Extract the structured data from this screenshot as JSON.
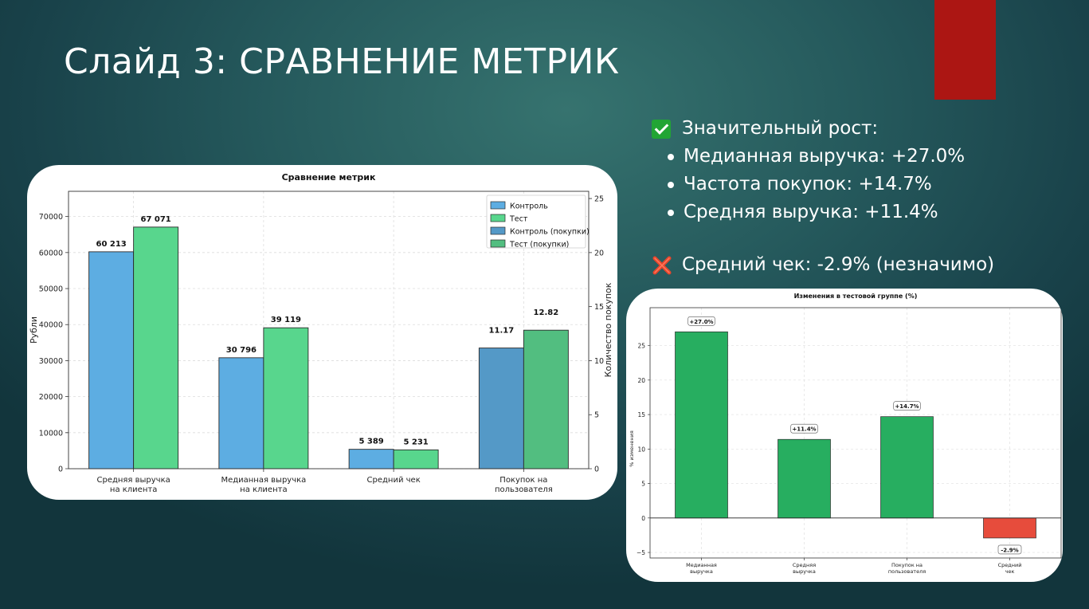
{
  "slide": {
    "title": "Слайд 3: СРАВНЕНИЕ МЕТРИК",
    "accent_color": "#ac1613"
  },
  "bullets": {
    "significant_icon": "check-mark-icon",
    "significant_header": "Значительный рост:",
    "items": [
      "Медианная выручка: +27.0%",
      "Частота покупок: +14.7%",
      "Средняя выручка: +11.4%"
    ],
    "insignificant_icon": "cross-mark-icon",
    "insignificant": "Средний чек: -2.9% (незначимо)"
  },
  "chart_data": [
    {
      "type": "bar",
      "title": "Сравнение метрик",
      "ylabel": "Рубли",
      "ylabel_right": "Количество покупок",
      "ylim": [
        0,
        77000
      ],
      "yticks": [
        0,
        10000,
        20000,
        30000,
        40000,
        50000,
        60000,
        70000
      ],
      "ylim_right": [
        0,
        25.67
      ],
      "yticks_right": [
        0,
        5,
        10,
        15,
        20,
        25
      ],
      "grid": true,
      "legend_position": "top-right",
      "categories": [
        "Средняя выручка\nна клиента",
        "Медианная выручка\nна клиента",
        "Средний чек",
        "Покупок на\nпользователя"
      ],
      "series": [
        {
          "name": "Контроль",
          "axis": "left",
          "color": "#5dade2",
          "values": [
            60213,
            30796,
            5389,
            null
          ],
          "labels": [
            "60 213",
            "30 796",
            "5 389",
            ""
          ]
        },
        {
          "name": "Тест",
          "axis": "left",
          "color": "#58d68d",
          "values": [
            67071,
            39119,
            5231,
            null
          ],
          "labels": [
            "67 071",
            "39 119",
            "5 231",
            ""
          ]
        },
        {
          "name": "Контроль (покупки)",
          "axis": "right",
          "color": "#5499c7",
          "values": [
            null,
            null,
            null,
            11.17
          ],
          "labels": [
            "",
            "",
            "",
            "11.17"
          ]
        },
        {
          "name": "Тест (покупки)",
          "axis": "right",
          "color": "#52be80",
          "values": [
            null,
            null,
            null,
            12.82
          ],
          "labels": [
            "",
            "",
            "",
            "12.82"
          ]
        }
      ]
    },
    {
      "type": "bar",
      "title": "Изменения в тестовой группе (%)",
      "ylabel": "% изменения",
      "ylim": [
        -5.8,
        30.5
      ],
      "yticks": [
        -5,
        0,
        5,
        10,
        15,
        20,
        25
      ],
      "grid": true,
      "categories": [
        "Медианная\nвыручка",
        "Средняя\nвыручка",
        "Покупок на\nпользователя",
        "Средний\nчек"
      ],
      "values": [
        27.0,
        11.4,
        14.7,
        -2.9
      ],
      "labels": [
        "+27.0%",
        "+11.4%",
        "+14.7%",
        "-2.9%"
      ],
      "colors": [
        "#27ae60",
        "#27ae60",
        "#27ae60",
        "#e74c3c"
      ]
    }
  ]
}
